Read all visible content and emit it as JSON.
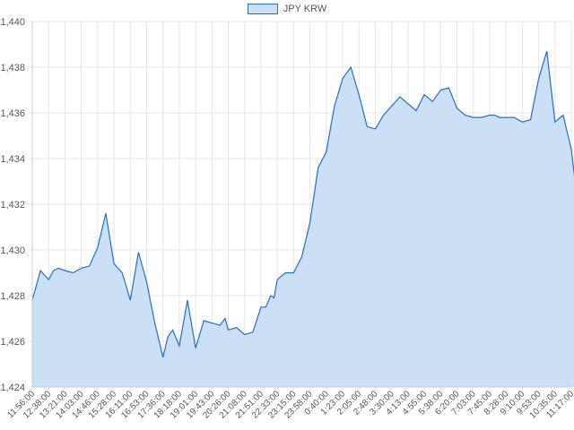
{
  "chart_data": {
    "type": "area",
    "legend": {
      "label": "JPY KRW",
      "position": "top-center"
    },
    "colors": {
      "line": "#1f6fd1",
      "fill": "#cce0f5",
      "grid": "#e5e5e5",
      "text": "#555555"
    },
    "ylim": [
      1424,
      1440
    ],
    "yticks": [
      "1,424",
      "1,426",
      "1,428",
      "1,430",
      "1,432",
      "1,434",
      "1,436",
      "1,438",
      "1,440"
    ],
    "xticks": [
      "11:56:00",
      "12:38:00",
      "13:21:00",
      "14:03:00",
      "14:46:00",
      "15:28:00",
      "16:11:00",
      "16:53:00",
      "17:36:00",
      "18:18:00",
      "19:01:00",
      "19:43:00",
      "20:26:00",
      "21:08:00",
      "21:51:00",
      "22:33:00",
      "23:15:00",
      "23:58:00",
      "0:40:00",
      "1:23:00",
      "2:05:00",
      "2:48:00",
      "3:30:00",
      "4:13:00",
      "4:55:00",
      "5:38:00",
      "6:20:00",
      "7:03:00",
      "7:45:00",
      "8:28:00",
      "9:10:00",
      "9:53:00",
      "10:35:00",
      "11:17:00"
    ],
    "grid": true,
    "series": [
      {
        "name": "JPY KRW",
        "x": [
          0,
          0.5,
          1,
          1.3,
          1.6,
          2,
          2.5,
          3,
          3.5,
          4,
          4.5,
          5,
          5.5,
          6,
          6.5,
          7,
          7.5,
          7.8,
          8,
          8.3,
          8.6,
          9,
          9.5,
          10,
          10.5,
          11,
          11.5,
          11.8,
          12,
          12.5,
          13,
          13.5,
          14,
          14.3,
          14.6,
          14.8,
          15,
          15.5,
          16,
          16.5,
          17,
          17.5,
          18,
          18.5,
          19,
          19.5,
          20,
          20.5,
          21,
          21.5,
          22,
          22.5,
          23,
          23.5,
          24,
          24.5,
          25,
          25.5,
          26,
          26.5,
          27,
          27.5,
          28,
          28.3,
          28.6,
          29,
          29.5,
          30,
          30.5,
          31,
          31.5,
          32,
          32.5,
          33,
          33.4
        ],
        "y": [
          1427.8,
          1429.1,
          1428.7,
          1429.1,
          1429.2,
          1429.1,
          1429.0,
          1429.2,
          1429.3,
          1430.1,
          1431.6,
          1429.4,
          1429.0,
          1427.8,
          1429.9,
          1428.6,
          1426.8,
          1425.9,
          1425.3,
          1426.2,
          1426.5,
          1425.8,
          1427.8,
          1425.7,
          1426.9,
          1426.8,
          1426.7,
          1427.0,
          1426.5,
          1426.6,
          1426.3,
          1426.4,
          1427.5,
          1427.5,
          1428.0,
          1427.9,
          1428.7,
          1429.0,
          1429.0,
          1429.7,
          1431.2,
          1433.6,
          1434.3,
          1436.3,
          1437.5,
          1438.0,
          1436.8,
          1435.4,
          1435.3,
          1435.9,
          1436.3,
          1436.7,
          1436.4,
          1436.1,
          1436.8,
          1436.5,
          1437.0,
          1437.1,
          1436.2,
          1435.9,
          1435.8,
          1435.8,
          1435.9,
          1435.9,
          1435.8,
          1435.8,
          1435.8,
          1435.6,
          1435.7,
          1437.5,
          1438.7,
          1435.6,
          1435.9,
          1434.4,
          1432.0
        ]
      }
    ]
  }
}
